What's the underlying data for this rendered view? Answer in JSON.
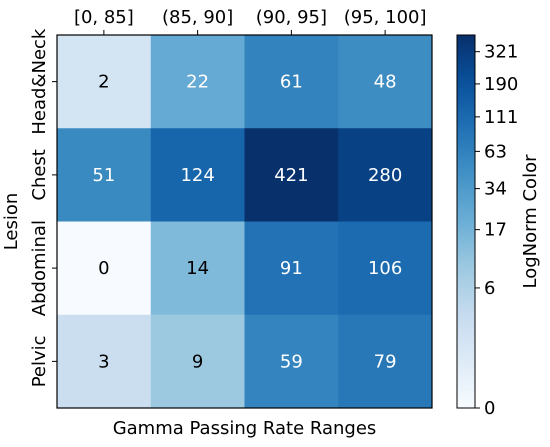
{
  "chart_data": {
    "type": "heatmap",
    "x_categories": [
      "[0, 85]",
      "(85, 90]",
      "(90, 95]",
      "(95, 100]"
    ],
    "y_categories": [
      "Head&Neck",
      "Chest",
      "Abdominal",
      "Pelvic"
    ],
    "values": [
      [
        2,
        22,
        61,
        48
      ],
      [
        51,
        124,
        421,
        280
      ],
      [
        0,
        14,
        91,
        106
      ],
      [
        3,
        9,
        59,
        79
      ]
    ],
    "xlabel": "Gamma Passing Rate Ranges",
    "ylabel": "Lesion",
    "x_tick_position": "top",
    "colorbar": {
      "label": "LogNorm Color",
      "ticks": [
        "0",
        "6",
        "17",
        "34",
        "63",
        "111",
        "190",
        "321"
      ],
      "scale": "log1p",
      "colormap": "Blues",
      "vmax": 421
    },
    "grid": false,
    "legend": "none"
  }
}
